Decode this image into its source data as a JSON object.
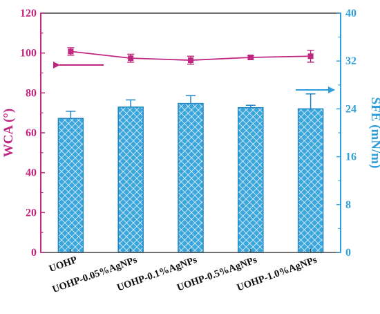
{
  "colors": {
    "left_axis": "#c0267f",
    "right_axis": "#2e9fd8",
    "bar_fill": "#3aa6dc",
    "bar_stroke": "#1f86c4",
    "frame": "#444444",
    "wca_line": "#c0267f"
  },
  "chart_data": {
    "type": "bar",
    "categories": [
      "UOHP",
      "UOHP-0.05%AgNPs",
      "UOHP-0.1%AgNPs",
      "UOHP-0.5%AgNPs",
      "UOHP-1.0%AgNPs"
    ],
    "series": [
      {
        "axis": "right",
        "kind": "bar",
        "values": [
          22.4,
          24.3,
          24.9,
          24.2,
          24.0
        ],
        "errors": [
          1.2,
          1.2,
          1.3,
          0.4,
          2.5
        ]
      },
      {
        "axis": "left",
        "kind": "line",
        "values": [
          100.8,
          97.4,
          96.4,
          97.8,
          98.4
        ],
        "errors": [
          1.9,
          2.0,
          2.0,
          0.8,
          3.0
        ]
      }
    ],
    "left_axis": {
      "label": "WCA (°)",
      "range": [
        0,
        120
      ],
      "ticks": [
        "0",
        "20",
        "40",
        "60",
        "80",
        "100",
        "120"
      ]
    },
    "right_axis": {
      "label": "SFE (mN/m)",
      "range": [
        0,
        40
      ],
      "ticks": [
        "0",
        "8",
        "16",
        "24",
        "32",
        "40"
      ]
    },
    "annotations": [
      {
        "type": "arrow",
        "direction": "left",
        "meaning": "WCA line refers to left axis"
      },
      {
        "type": "arrow",
        "direction": "right",
        "meaning": "bars refer to right axis"
      }
    ],
    "grid": false
  }
}
